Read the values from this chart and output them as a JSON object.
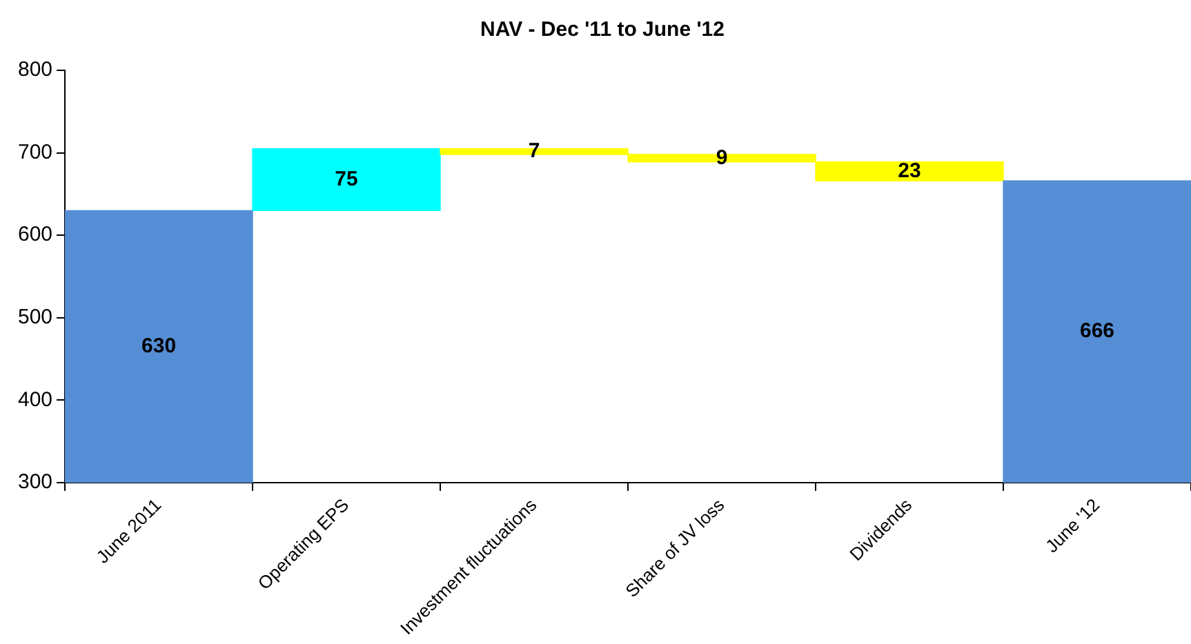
{
  "chart_data": {
    "type": "bar",
    "title": "NAV - Dec '11 to June '12",
    "categories": [
      "June 2011",
      "Operating EPS",
      "Investment fluctuations",
      "Share of JV loss",
      "Dividends",
      "June '12"
    ],
    "values": [
      630,
      75,
      -7,
      -9,
      -23,
      666
    ],
    "base": [
      null,
      630,
      705,
      698,
      689,
      null
    ],
    "colors": [
      "#558ed5",
      "#00ffff",
      "#ffff00",
      "#ffff00",
      "#ffff00",
      "#558ed5"
    ],
    "value_labels": [
      "630",
      "75",
      "7",
      "9",
      "23",
      "666"
    ],
    "ylim": [
      300,
      800
    ],
    "yticks": [
      300,
      400,
      500,
      600,
      700,
      800
    ],
    "grid": false,
    "legend": false
  }
}
